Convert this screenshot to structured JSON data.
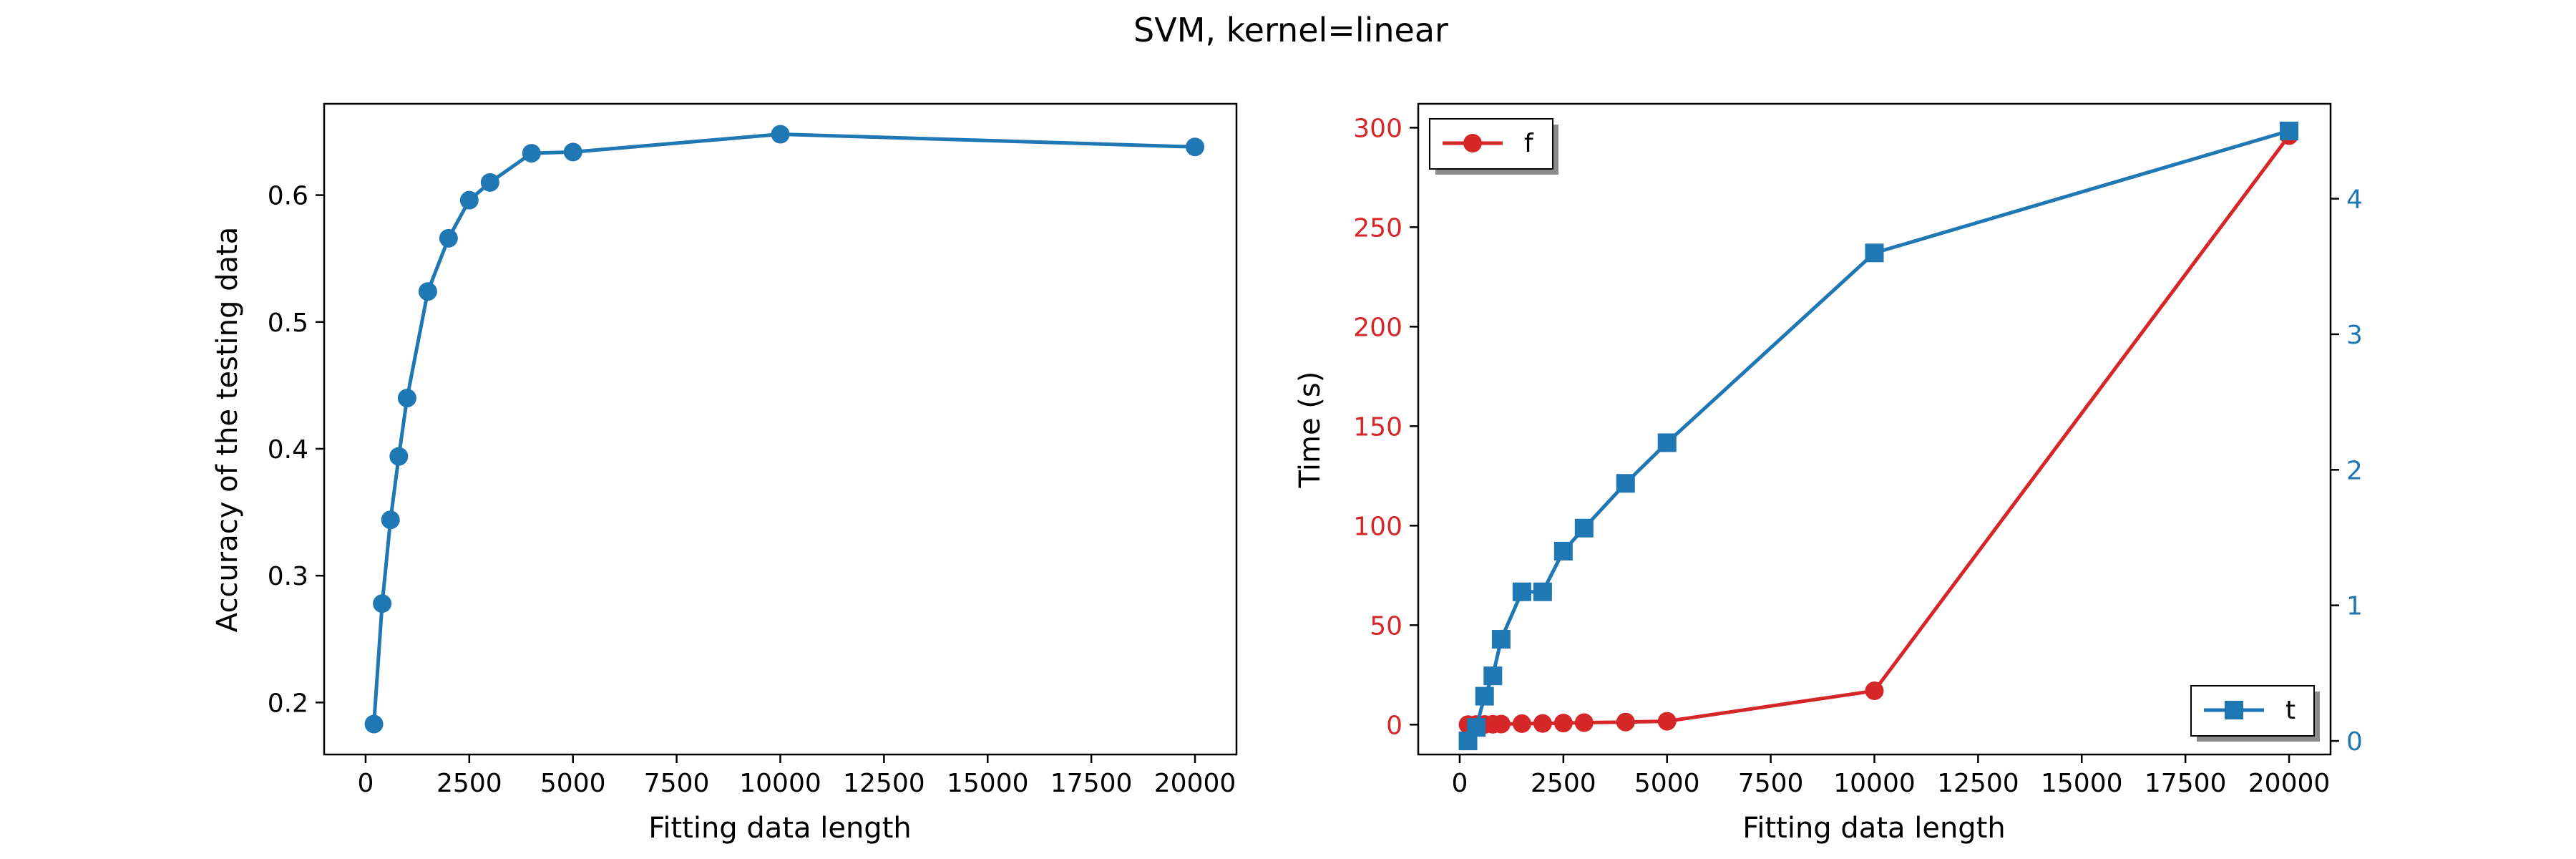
{
  "title": "SVM, kernel=linear",
  "colors": {
    "blue": "#1f77b4",
    "red": "#d62728",
    "black": "#000000"
  },
  "chart_data": [
    {
      "type": "line",
      "xlabel": "Fitting data length",
      "ylabel": "Accuracy of the testing data",
      "xlim": [
        -1000,
        21000
      ],
      "ylim": [
        0.159,
        0.672
      ],
      "xticks": [
        0,
        2500,
        5000,
        7500,
        10000,
        12500,
        15000,
        17500,
        20000
      ],
      "yticks": [
        0.2,
        0.3,
        0.4,
        0.5,
        0.6
      ],
      "grid": false,
      "series": [
        {
          "color": "#1f77b4",
          "marker": "circle",
          "x": [
            200,
            400,
            600,
            800,
            1000,
            1500,
            2000,
            2500,
            3000,
            4000,
            5000,
            10000,
            20000
          ],
          "y": [
            0.183,
            0.278,
            0.344,
            0.394,
            0.44,
            0.524,
            0.566,
            0.596,
            0.61,
            0.633,
            0.634,
            0.648,
            0.638
          ]
        }
      ]
    },
    {
      "type": "line",
      "xlabel": "Fitting data length",
      "ylabel": "Time (s)",
      "y2label": "",
      "xlim": [
        -1000,
        21000
      ],
      "ylim": [
        -15,
        312
      ],
      "y2lim": [
        -0.1,
        4.7
      ],
      "xticks": [
        0,
        2500,
        5000,
        7500,
        10000,
        12500,
        15000,
        17500,
        20000
      ],
      "yticks": [
        0,
        50,
        100,
        150,
        200,
        250,
        300
      ],
      "y2ticks": [
        0,
        1,
        2,
        3,
        4
      ],
      "grid": false,
      "series": [
        {
          "name": "f",
          "axis": "left",
          "color": "#d62728",
          "marker": "circle",
          "legend": "top-left",
          "x": [
            200,
            400,
            600,
            800,
            1000,
            1500,
            2000,
            2500,
            3000,
            4000,
            5000,
            10000,
            20000
          ],
          "y": [
            0.02,
            0.05,
            0.1,
            0.2,
            0.3,
            0.5,
            0.6,
            0.8,
            1.0,
            1.3,
            1.7,
            17,
            296
          ]
        },
        {
          "name": "t",
          "axis": "right",
          "color": "#1f77b4",
          "marker": "square",
          "legend": "bottom-right",
          "x": [
            200,
            400,
            600,
            800,
            1000,
            1500,
            2000,
            2500,
            3000,
            4000,
            5000,
            10000,
            20000
          ],
          "y": [
            0.0,
            0.1,
            0.33,
            0.48,
            0.75,
            1.1,
            1.1,
            1.4,
            1.57,
            1.9,
            2.2,
            3.6,
            4.5
          ]
        }
      ]
    }
  ]
}
